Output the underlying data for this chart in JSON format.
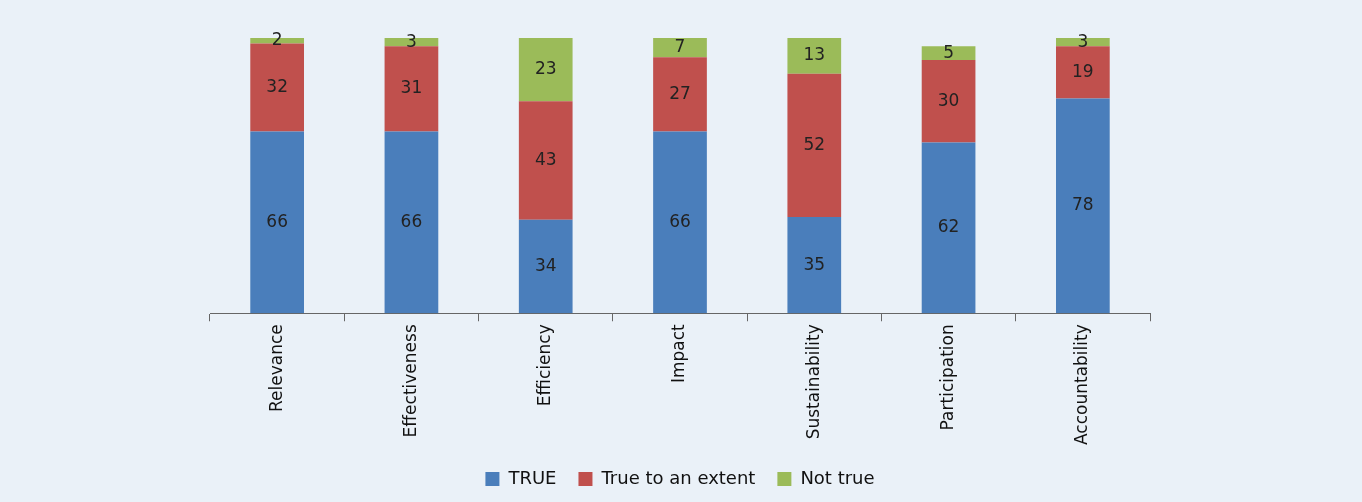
{
  "chart_data": {
    "type": "bar",
    "stacked": true,
    "data_labels": true,
    "legend": "bottom",
    "grid": false,
    "categories": [
      "Relevance",
      "Effectiveness",
      "Efficiency",
      "Impact",
      "Sustainability",
      "Participation",
      "Accountability"
    ],
    "series": [
      {
        "name": "TRUE",
        "color": "#4a7ebb",
        "values": [
          66,
          66,
          34,
          66,
          35,
          62,
          78
        ]
      },
      {
        "name": "True to an extent",
        "color": "#c0504d",
        "values": [
          32,
          31,
          43,
          27,
          52,
          30,
          19
        ]
      },
      {
        "name": "Not true",
        "color": "#9bbb59",
        "values": [
          2,
          3,
          23,
          7,
          13,
          5,
          3
        ]
      }
    ]
  }
}
